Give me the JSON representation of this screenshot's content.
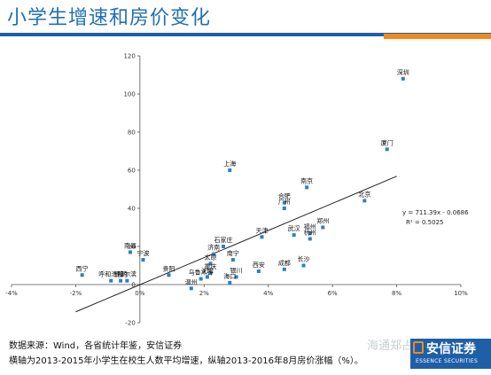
{
  "title": "小学生增速和房价变化",
  "source_text": "数据来源：Wind，各省统计年鉴，安信证券",
  "axis_note": "横轴为2013-2015年小学生在校生人数平均增速，纵轴2013-2016年8月房价涨幅（%）。",
  "watermark": "海通郑占菲",
  "brand": {
    "name": "安信证券",
    "english": "ESSENCE SECURITIES",
    "accent": "#f08a1c",
    "primary": "#1f5fa8"
  },
  "chart_data": {
    "type": "scatter",
    "title": "",
    "xlabel": "",
    "ylabel": "",
    "xlim": [
      -4,
      10
    ],
    "ylim": [
      -20,
      120
    ],
    "x_ticks": [
      -4,
      -2,
      0,
      2,
      4,
      6,
      8,
      10
    ],
    "x_tick_labels": [
      "-4%",
      "-2%",
      "0%",
      "2%",
      "4%",
      "6%",
      "8%",
      "10%"
    ],
    "y_ticks": [
      -20,
      0,
      20,
      40,
      60,
      80,
      100,
      120
    ],
    "y_tick_labels": [
      "-20",
      "0",
      "20",
      "40",
      "60",
      "80",
      "100",
      "120"
    ],
    "point_color": "#2e7fc3",
    "grid": false,
    "points": [
      {
        "label": "深圳",
        "x": 8.2,
        "y": 108
      },
      {
        "label": "厦门",
        "x": 7.7,
        "y": 71
      },
      {
        "label": "上海",
        "x": 2.8,
        "y": 60
      },
      {
        "label": "合肥",
        "x": 4.5,
        "y": 43
      },
      {
        "label": "南京",
        "x": 5.2,
        "y": 51
      },
      {
        "label": "广州",
        "x": 4.5,
        "y": 40
      },
      {
        "label": "北京",
        "x": 7.0,
        "y": 44
      },
      {
        "label": "天津",
        "x": 3.8,
        "y": 25
      },
      {
        "label": "武汉",
        "x": 4.8,
        "y": 26
      },
      {
        "label": "福州",
        "x": 5.3,
        "y": 27
      },
      {
        "label": "郑州",
        "x": 5.7,
        "y": 30
      },
      {
        "label": "杭州",
        "x": 5.3,
        "y": 24
      },
      {
        "label": "成都",
        "x": 4.5,
        "y": 8
      },
      {
        "label": "长沙",
        "x": 5.1,
        "y": 10
      },
      {
        "label": "西安",
        "x": 3.7,
        "y": 7
      },
      {
        "label": "银川",
        "x": 3.0,
        "y": 4
      },
      {
        "label": "海口",
        "x": 2.8,
        "y": 1
      },
      {
        "label": "南昌",
        "x": -0.3,
        "y": 17
      },
      {
        "label": "宁波",
        "x": 0.1,
        "y": 13
      },
      {
        "label": "济南",
        "x": 2.3,
        "y": 16
      },
      {
        "label": "石家庄",
        "x": 2.6,
        "y": 20
      },
      {
        "label": "南宁",
        "x": 2.9,
        "y": 13
      },
      {
        "label": "太原",
        "x": 2.2,
        "y": 11
      },
      {
        "label": "贵阳",
        "x": 0.9,
        "y": 5
      },
      {
        "label": "重庆",
        "x": 2.2,
        "y": 6
      },
      {
        "label": "沈阳",
        "x": 2.1,
        "y": 4
      },
      {
        "label": "乌鲁木齐",
        "x": 1.9,
        "y": 3
      },
      {
        "label": "温州",
        "x": 1.6,
        "y": -2
      },
      {
        "label": "西宁",
        "x": -1.8,
        "y": 5
      },
      {
        "label": "呼和浩特",
        "x": -0.9,
        "y": 2
      },
      {
        "label": "昆明",
        "x": -0.6,
        "y": 2
      },
      {
        "label": "哈尔滨",
        "x": -0.4,
        "y": 2
      }
    ],
    "trendline": {
      "slope": 711.39,
      "intercept": -0.0686,
      "x_range": [
        -2.0,
        8.0
      ],
      "equation": "y = 711.39x - 0.0686",
      "r_squared": "R² = 0.5025"
    }
  }
}
